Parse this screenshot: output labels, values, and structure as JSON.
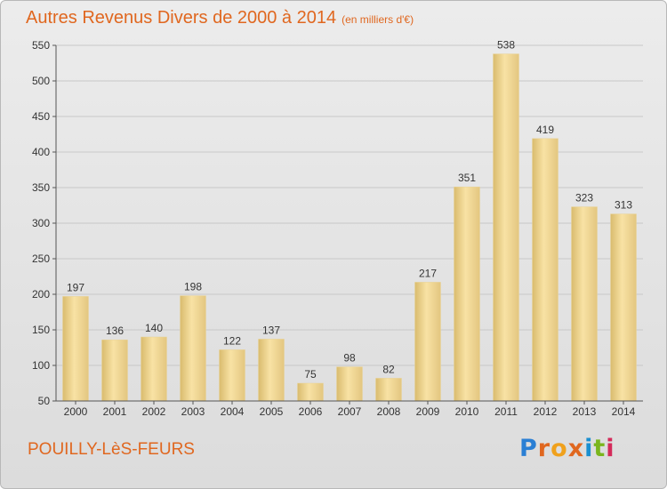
{
  "header": {
    "title": "Autres Revenus Divers de 2000 à 2014",
    "unit": "(en milliers d'€)"
  },
  "footer": {
    "commune": "POUILLY-LèS-FEURS",
    "brand": "Proxiti",
    "brand_colors": [
      "#2a7fd4",
      "#e0671f",
      "#f0a11c",
      "#e0671f",
      "#1a8fd0",
      "#7ab51d",
      "#d42a5a"
    ]
  },
  "colors": {
    "title": "#e0671f",
    "bar_light": "#f8e2a4",
    "bar_dark": "#d9bb6e"
  },
  "chart_data": {
    "type": "bar",
    "title": "Autres Revenus Divers de 2000 à 2014",
    "subtitle": "(en milliers d'€)",
    "categories": [
      "2000",
      "2001",
      "2002",
      "2003",
      "2004",
      "2005",
      "2006",
      "2007",
      "2008",
      "2009",
      "2010",
      "2011",
      "2012",
      "2013",
      "2014"
    ],
    "values": [
      197,
      136,
      140,
      198,
      122,
      137,
      75,
      98,
      82,
      217,
      351,
      538,
      419,
      323,
      313
    ],
    "ylim": [
      50,
      550
    ],
    "yticks": [
      50,
      100,
      150,
      200,
      250,
      300,
      350,
      400,
      450,
      500,
      550
    ],
    "grid": true,
    "legend": "none"
  }
}
